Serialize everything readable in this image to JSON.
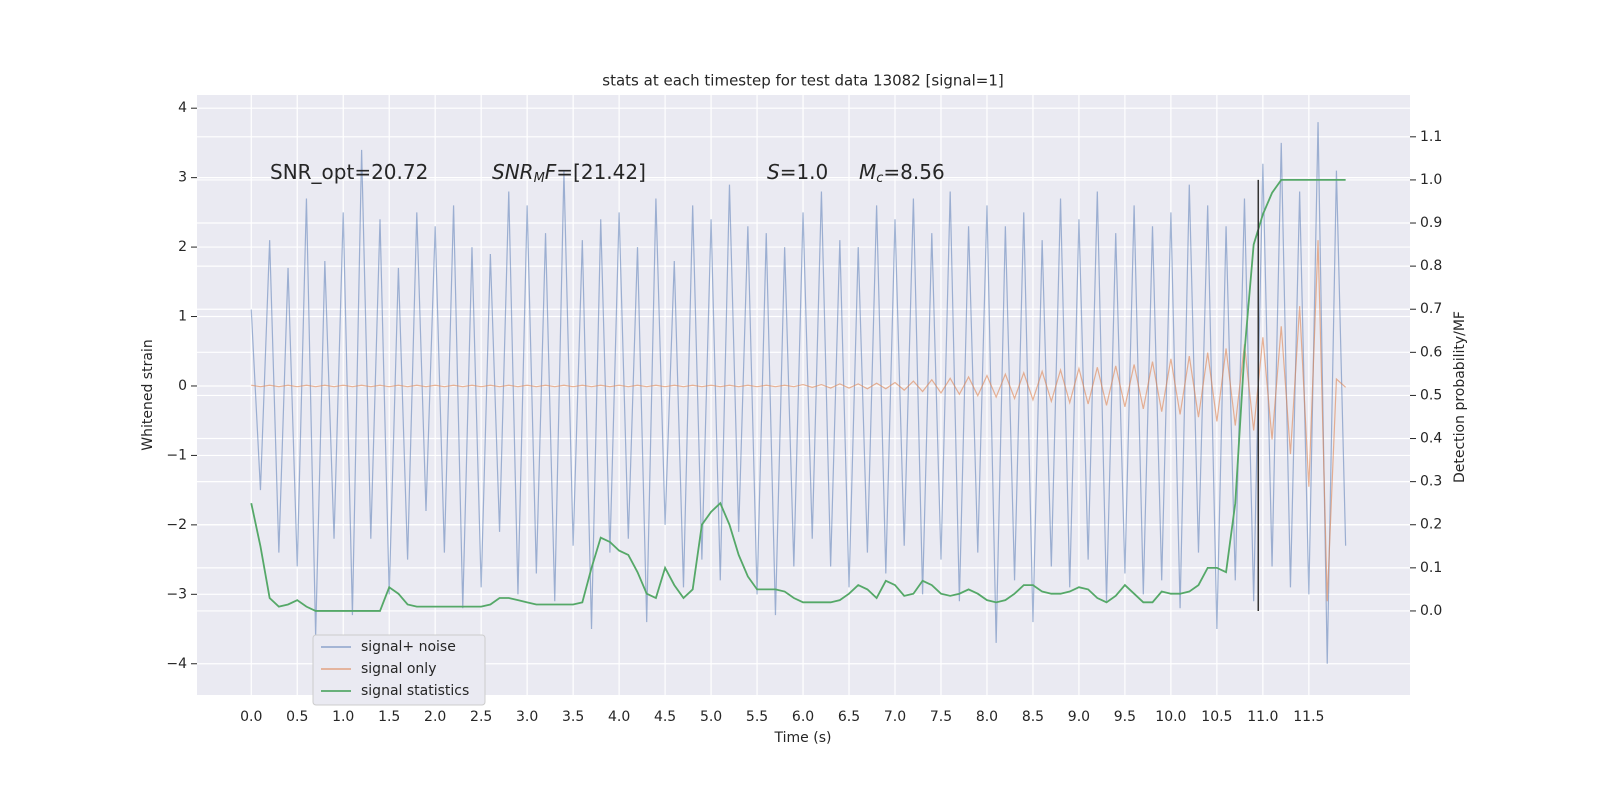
{
  "chart_data": {
    "type": "line",
    "title": "stats at each timestep for test data 13082 [signal=1]",
    "x_label": "Time (s)",
    "y_label": "Whitened strain",
    "y2_label": "Detection probability/MF",
    "annotations": [
      {
        "main": "SNR_opt=20.72",
        "italic": false
      },
      {
        "main": "SNR",
        "sub": "M",
        "rest": "F=[21.42]",
        "italic": true
      },
      {
        "main": "S",
        "rest": "=1.0",
        "italic": true
      },
      {
        "main": "M",
        "sub": "c",
        "rest": "=8.56",
        "italic": true
      }
    ],
    "xlim": [
      -0.59,
      12.6
    ],
    "ylim": [
      -4.45,
      4.19
    ],
    "y2lim": [
      -0.195,
      1.197
    ],
    "grid": true,
    "legend": "lower left",
    "xticks": [
      {
        "value": 0,
        "label": "0.0"
      },
      {
        "value": 0.5,
        "label": "0.5"
      },
      {
        "value": 1,
        "label": "1.0"
      },
      {
        "value": 1.5,
        "label": "1.5"
      },
      {
        "value": 2,
        "label": "2.0"
      },
      {
        "value": 2.5,
        "label": "2.5"
      },
      {
        "value": 3,
        "label": "3.0"
      },
      {
        "value": 3.5,
        "label": "3.5"
      },
      {
        "value": 4,
        "label": "4.0"
      },
      {
        "value": 4.5,
        "label": "4.5"
      },
      {
        "value": 5,
        "label": "5.0"
      },
      {
        "value": 5.5,
        "label": "5.5"
      },
      {
        "value": 6,
        "label": "6.0"
      },
      {
        "value": 6.5,
        "label": "6.5"
      },
      {
        "value": 7,
        "label": "7.0"
      },
      {
        "value": 7.5,
        "label": "7.5"
      },
      {
        "value": 8,
        "label": "8.0"
      },
      {
        "value": 8.5,
        "label": "8.5"
      },
      {
        "value": 9,
        "label": "9.0"
      },
      {
        "value": 9.5,
        "label": "9.5"
      },
      {
        "value": 10,
        "label": "10.0"
      },
      {
        "value": 10.5,
        "label": "10.5"
      },
      {
        "value": 11,
        "label": "11.0"
      },
      {
        "value": 11.5,
        "label": "11.5"
      }
    ],
    "yticks": [
      {
        "value": -4,
        "label": "−4"
      },
      {
        "value": -3,
        "label": "−3"
      },
      {
        "value": -2,
        "label": "−2"
      },
      {
        "value": -1,
        "label": "−1"
      },
      0,
      1,
      2,
      3,
      4
    ],
    "y2ticks": [
      {
        "value": 0,
        "label": "0.0"
      },
      {
        "value": 0.1,
        "label": "0.1"
      },
      {
        "value": 0.2,
        "label": "0.2"
      },
      {
        "value": 0.3,
        "label": "0.3"
      },
      {
        "value": 0.4,
        "label": "0.4"
      },
      {
        "value": 0.5,
        "label": "0.5"
      },
      {
        "value": 0.6,
        "label": "0.6"
      },
      {
        "value": 0.7,
        "label": "0.7"
      },
      {
        "value": 0.8,
        "label": "0.8"
      },
      {
        "value": 0.9,
        "label": "0.9"
      },
      {
        "value": 1,
        "label": "1.0"
      },
      {
        "value": 1.1,
        "label": "1.1"
      }
    ],
    "x": [
      0,
      0.1,
      0.2,
      0.3,
      0.4,
      0.5,
      0.6,
      0.7,
      0.8,
      0.9,
      1,
      1.1,
      1.2,
      1.3,
      1.4,
      1.5,
      1.6,
      1.7,
      1.8,
      1.9,
      2,
      2.1,
      2.2,
      2.3,
      2.4,
      2.5,
      2.6,
      2.7,
      2.8,
      2.9,
      3,
      3.1,
      3.2,
      3.3,
      3.4,
      3.5,
      3.6,
      3.7,
      3.8,
      3.9,
      4,
      4.1,
      4.2,
      4.3,
      4.4,
      4.5,
      4.6,
      4.7,
      4.8,
      4.9,
      5,
      5.1,
      5.2,
      5.3,
      5.4,
      5.5,
      5.6,
      5.7,
      5.8,
      5.9,
      6,
      6.1,
      6.2,
      6.3,
      6.4,
      6.5,
      6.6,
      6.7,
      6.8,
      6.9,
      7,
      7.1,
      7.2,
      7.3,
      7.4,
      7.5,
      7.6,
      7.7,
      7.8,
      7.9,
      8,
      8.1,
      8.2,
      8.3,
      8.4,
      8.5,
      8.6,
      8.7,
      8.8,
      8.9,
      9,
      9.1,
      9.2,
      9.3,
      9.4,
      9.5,
      9.6,
      9.7,
      9.8,
      9.9,
      10,
      10.1,
      10.2,
      10.3,
      10.4,
      10.5,
      10.6,
      10.7,
      10.8,
      10.9,
      11,
      11.1,
      11.2,
      11.3,
      11.4,
      11.5,
      11.6,
      11.7,
      11.8,
      11.9
    ],
    "series": [
      {
        "name": "signal+ noise",
        "color": "#4c72b0",
        "opacity": 0.5,
        "axis": "y",
        "values": [
          1.1,
          -1.5,
          2.1,
          -2.4,
          1.7,
          -2.6,
          2.7,
          -3.6,
          1.8,
          -2.2,
          2.5,
          -3.3,
          3.4,
          -2.2,
          2.4,
          -3.0,
          1.7,
          -2.5,
          2.5,
          -1.8,
          2.3,
          -2.4,
          2.6,
          -3.2,
          2.0,
          -2.9,
          1.9,
          -2.1,
          2.8,
          -3.0,
          2.6,
          -2.7,
          2.2,
          -3.1,
          3.1,
          -2.3,
          2.1,
          -3.5,
          2.4,
          -2.4,
          2.5,
          -2.2,
          2.0,
          -3.4,
          2.7,
          -2.0,
          1.8,
          -2.9,
          2.6,
          -2.5,
          2.4,
          -2.8,
          2.9,
          -2.1,
          2.3,
          -3.0,
          2.2,
          -3.3,
          2.0,
          -2.6,
          2.5,
          -2.2,
          2.8,
          -2.6,
          2.1,
          -2.9,
          2.0,
          -2.4,
          2.6,
          -2.7,
          2.4,
          -2.3,
          2.7,
          -3.0,
          2.2,
          -2.5,
          2.8,
          -3.1,
          2.3,
          -2.4,
          2.6,
          -3.7,
          2.3,
          -2.8,
          2.5,
          -3.4,
          2.1,
          -2.6,
          2.7,
          -2.9,
          2.4,
          -2.5,
          2.8,
          -3.1,
          2.2,
          -2.7,
          2.6,
          -3.0,
          2.3,
          -2.8,
          2.5,
          -3.2,
          2.9,
          -2.4,
          2.6,
          -3.5,
          2.3,
          -2.8,
          2.7,
          -3.1,
          3.2,
          -2.6,
          3.5,
          -2.9,
          2.8,
          -3.0,
          3.8,
          -4.0,
          3.1,
          -2.3
        ]
      },
      {
        "name": "signal only",
        "color": "#dd8452",
        "opacity": 0.6,
        "axis": "y",
        "values": [
          0.01,
          -0.01,
          0.01,
          -0.01,
          0.01,
          -0.01,
          0.01,
          -0.01,
          0.01,
          -0.01,
          0.01,
          -0.01,
          0.01,
          -0.01,
          0.01,
          -0.01,
          0.01,
          -0.01,
          0.01,
          -0.01,
          0.01,
          -0.01,
          0.01,
          -0.01,
          0.01,
          -0.01,
          0.01,
          -0.01,
          0.01,
          -0.01,
          0.01,
          -0.01,
          0.01,
          -0.01,
          0.01,
          -0.01,
          0.01,
          -0.01,
          0.01,
          -0.01,
          0.01,
          -0.01,
          0.01,
          -0.01,
          0.01,
          -0.01,
          0.01,
          -0.01,
          0.01,
          -0.01,
          0.01,
          -0.01,
          0.01,
          -0.01,
          0.01,
          -0.01,
          0.01,
          -0.01,
          0.01,
          -0.01,
          0.02,
          -0.02,
          0.02,
          -0.03,
          0.03,
          -0.03,
          0.03,
          -0.04,
          0.04,
          -0.04,
          0.05,
          -0.06,
          0.07,
          -0.08,
          0.09,
          -0.1,
          0.11,
          -0.12,
          0.13,
          -0.14,
          0.15,
          -0.16,
          0.17,
          -0.18,
          0.19,
          -0.2,
          0.21,
          -0.22,
          0.23,
          -0.24,
          0.25,
          -0.26,
          0.27,
          -0.28,
          0.29,
          -0.3,
          0.31,
          -0.33,
          0.35,
          -0.37,
          0.39,
          -0.41,
          0.43,
          -0.45,
          0.48,
          -0.51,
          0.54,
          -0.57,
          0.6,
          -0.64,
          0.7,
          -0.77,
          0.86,
          -0.98,
          1.15,
          -1.45,
          2.1,
          -3.1,
          0.1,
          -0.02
        ]
      },
      {
        "name": "signal statistics",
        "color": "#55a868",
        "opacity": 1,
        "axis": "y2",
        "values": [
          0.25,
          0.15,
          0.03,
          0.01,
          0.015,
          0.025,
          0.01,
          0,
          0,
          0,
          0,
          0,
          0,
          0,
          0,
          0.055,
          0.04,
          0.015,
          0.01,
          0.01,
          0.01,
          0.01,
          0.01,
          0.01,
          0.01,
          0.01,
          0.015,
          0.03,
          0.03,
          0.025,
          0.02,
          0.015,
          0.015,
          0.015,
          0.015,
          0.015,
          0.02,
          0.1,
          0.17,
          0.16,
          0.14,
          0.13,
          0.09,
          0.04,
          0.03,
          0.1,
          0.06,
          0.03,
          0.05,
          0.2,
          0.23,
          0.25,
          0.2,
          0.13,
          0.08,
          0.05,
          0.05,
          0.05,
          0.045,
          0.03,
          0.02,
          0.02,
          0.02,
          0.02,
          0.025,
          0.04,
          0.06,
          0.05,
          0.03,
          0.07,
          0.06,
          0.035,
          0.04,
          0.07,
          0.06,
          0.04,
          0.035,
          0.04,
          0.05,
          0.04,
          0.025,
          0.02,
          0.025,
          0.04,
          0.06,
          0.06,
          0.045,
          0.04,
          0.04,
          0.045,
          0.055,
          0.05,
          0.03,
          0.02,
          0.035,
          0.06,
          0.04,
          0.02,
          0.02,
          0.045,
          0.04,
          0.04,
          0.045,
          0.06,
          0.1,
          0.1,
          0.09,
          0.25,
          0.6,
          0.85,
          0.92,
          0.97,
          1,
          1,
          1,
          1,
          1,
          1,
          1,
          1
        ]
      }
    ],
    "vline": {
      "x": 10.95,
      "ymin": 0,
      "ymax": 1,
      "color": "#333333"
    }
  }
}
